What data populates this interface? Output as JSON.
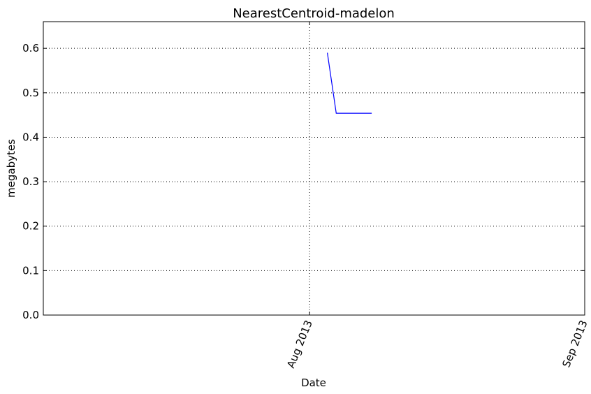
{
  "chart_data": {
    "type": "line",
    "title": "NearestCentroid-madelon",
    "xlabel": "Date",
    "ylabel": "megabytes",
    "x_axis_type": "date",
    "xlim": [
      "2013-07-02",
      "2013-09-01"
    ],
    "ylim": [
      0,
      0.66
    ],
    "y_ticks": [
      0.0,
      0.1,
      0.2,
      0.3,
      0.4,
      0.5,
      0.6
    ],
    "y_tick_labels": [
      "0.0",
      "0.1",
      "0.2",
      "0.3",
      "0.4",
      "0.5",
      "0.6"
    ],
    "x_ticks": [
      "2013-08-01",
      "2013-09-01"
    ],
    "x_tick_labels": [
      "Aug 2013",
      "Sep 2013"
    ],
    "grid": true,
    "line_color": "#0000ff",
    "series": [
      {
        "x": [
          "2013-08-03",
          "2013-08-04",
          "2013-08-08"
        ],
        "y": [
          0.59,
          0.454,
          0.454
        ]
      }
    ]
  }
}
